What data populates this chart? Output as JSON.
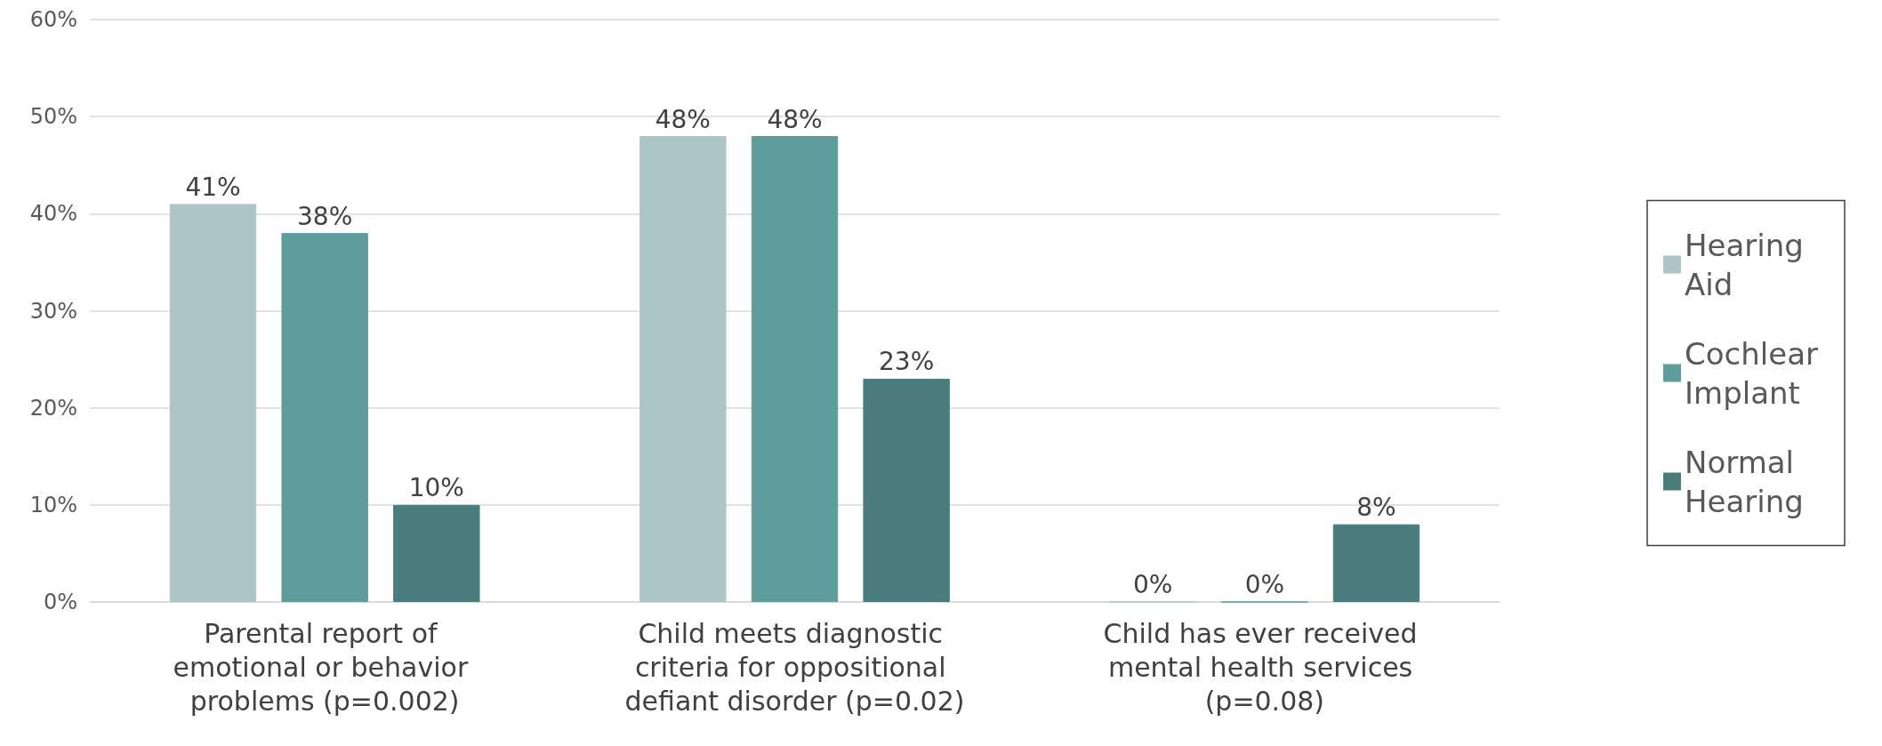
{
  "chart_data": {
    "type": "bar",
    "categories": [
      "Parental report of emotional or behavior problems (p=0.002)",
      "Child meets diagnostic criteria for oppositional defiant disorder (p=0.02)",
      "Child has ever received mental health services (p=0.08)"
    ],
    "series": [
      {
        "name": "Hearing Aid",
        "color": "#adc5c6",
        "values": [
          41,
          48,
          0
        ],
        "value_labels": [
          "41%",
          "48%",
          "0%"
        ]
      },
      {
        "name": "Cochlear Implant",
        "color": "#5f9c9c",
        "values": [
          38,
          48,
          0
        ],
        "value_labels": [
          "38%",
          "48%",
          "0%"
        ]
      },
      {
        "name": "Normal Hearing",
        "color": "#4a7c7c",
        "values": [
          10,
          23,
          8
        ],
        "value_labels": [
          "10%",
          "23%",
          "8%"
        ]
      }
    ],
    "ylim": [
      0,
      60
    ],
    "yticks": [
      {
        "value": 0,
        "label": "0%"
      },
      {
        "value": 10,
        "label": "10%"
      },
      {
        "value": 20,
        "label": "20%"
      },
      {
        "value": 30,
        "label": "30%"
      },
      {
        "value": 40,
        "label": "40%"
      },
      {
        "value": 50,
        "label": "50%"
      },
      {
        "value": 60,
        "label": "60%"
      }
    ],
    "grid": "y",
    "legend": "right"
  }
}
